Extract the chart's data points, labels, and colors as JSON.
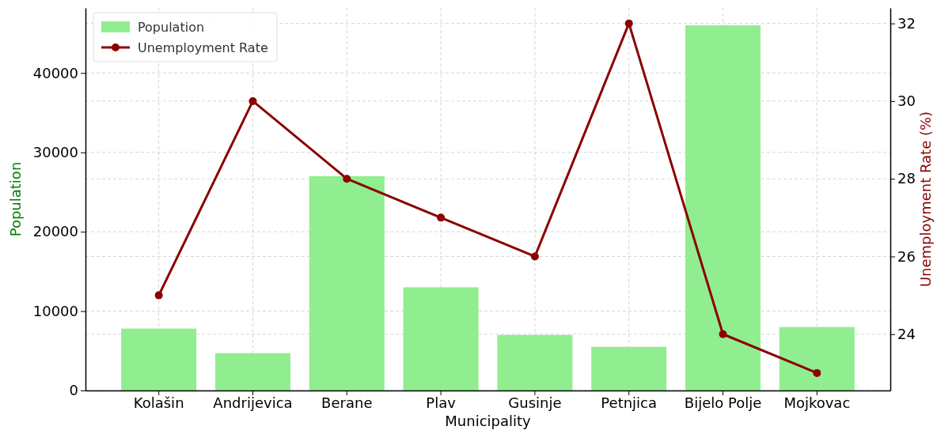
{
  "chart_data": {
    "type": "bar",
    "xlabel": "Municipality",
    "ylabel": "Population",
    "y2label": "Unemployment Rate (%)",
    "categories": [
      "Kolašin",
      "Andrijevica",
      "Berane",
      "Plav",
      "Gusinje",
      "Petnjica",
      "Bijelo Polje",
      "Mojkovac"
    ],
    "series": [
      {
        "name": "Population",
        "color": "#90ee90",
        "values": [
          7800,
          4700,
          27000,
          13000,
          7000,
          5500,
          46000,
          8000
        ]
      },
      {
        "name": "Unemployment Rate",
        "type": "line",
        "axis": "y2",
        "color": "#8b0000",
        "marker": "circle",
        "values": [
          25,
          30,
          28,
          27,
          26,
          32,
          24,
          23
        ]
      }
    ],
    "ylim": [
      0,
      48200
    ],
    "yticks": [
      0,
      10000,
      20000,
      30000,
      40000
    ],
    "y2lim": [
      22.55,
      32.4
    ],
    "y2ticks": [
      24,
      26,
      28,
      30,
      32
    ],
    "grid": true,
    "legend": "top left"
  }
}
